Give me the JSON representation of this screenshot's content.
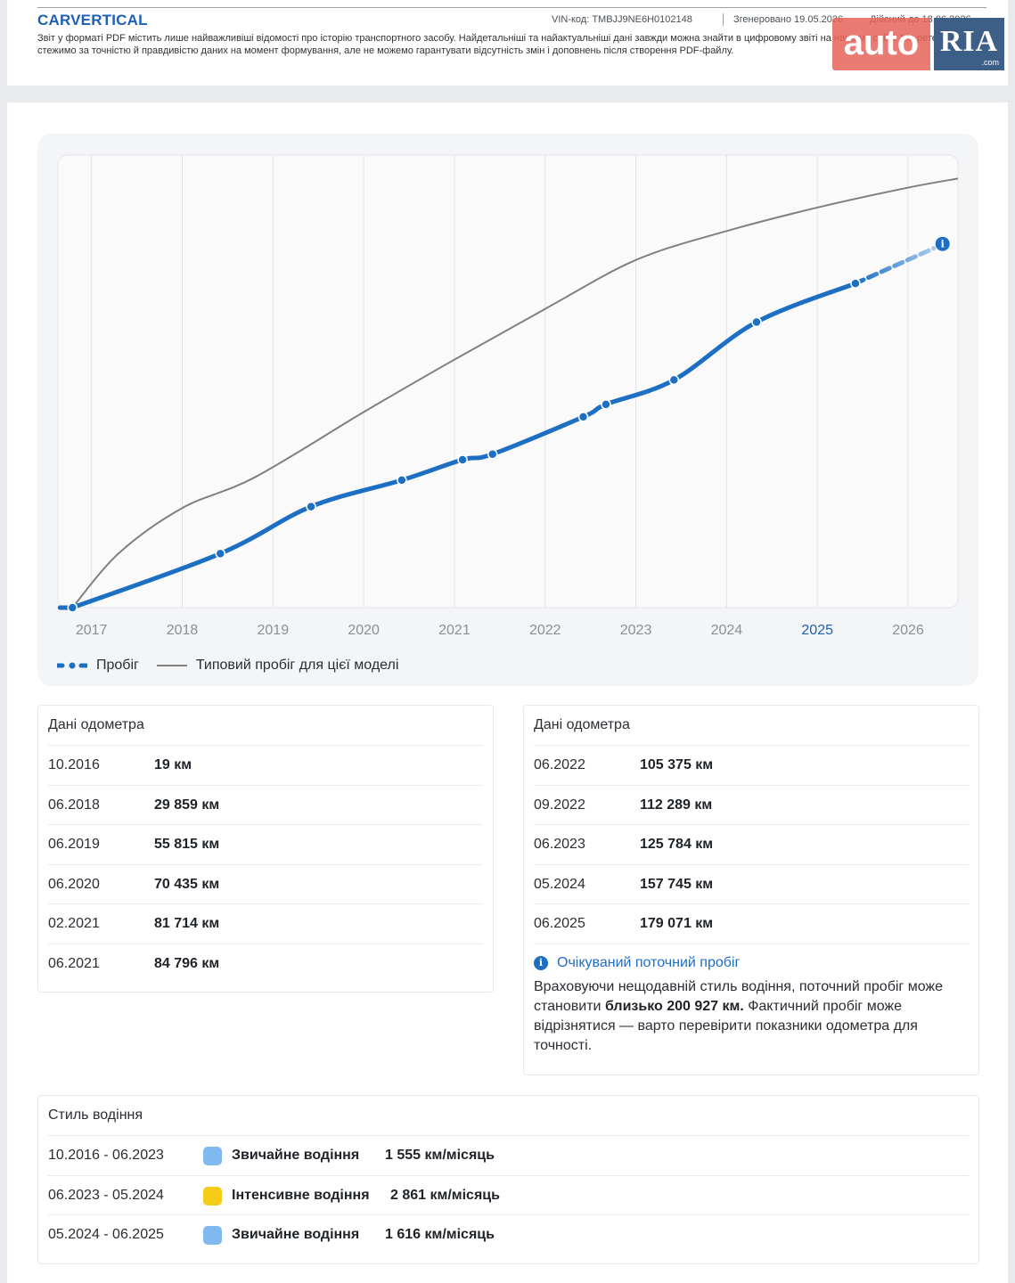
{
  "header": {
    "logo": "CARVERTICAL",
    "vin": "VIN-код:  TMBJJ9NE6H0102148",
    "generated": "Згенеровано  19.05.2026",
    "valid_until": "Дійсний до  18.06.2026",
    "disclaimer": "Звіт у форматі PDF містить лише найважливіші відомості про історію транспортного засобу. Найдетальніші та найактуальніші дані завжди можна знайти в цифровому звіті на нашому сайті. Ми ретельно стежимо за точністю й правдивістю даних на момент формування, але не можемо гарантувати відсутність змін і доповнень після створення PDF-файлу."
  },
  "watermark": {
    "auto": "auto",
    "ria": "RIA",
    "com": ".com"
  },
  "colors": {
    "accent": "#1d6fc4",
    "typical": "#808080",
    "normal": "#7fb9f0",
    "intensive": "#f5cc17"
  },
  "chart_data": {
    "type": "line",
    "x_ticks": [
      "2017",
      "2018",
      "2019",
      "2020",
      "2021",
      "2022",
      "2023",
      "2024",
      "2025",
      "2026"
    ],
    "highlighted_tick": "2025",
    "grid": true,
    "series": [
      {
        "name": "Пробіг",
        "style": "solid-blue-with-points",
        "points": [
          {
            "x": 2016.79,
            "y": 19
          },
          {
            "x": 2018.42,
            "y": 29859
          },
          {
            "x": 2019.42,
            "y": 55815
          },
          {
            "x": 2020.42,
            "y": 70435
          },
          {
            "x": 2021.09,
            "y": 81714
          },
          {
            "x": 2021.42,
            "y": 84796
          },
          {
            "x": 2022.42,
            "y": 105375
          },
          {
            "x": 2022.67,
            "y": 112289
          },
          {
            "x": 2023.42,
            "y": 125784
          },
          {
            "x": 2024.33,
            "y": 157745
          },
          {
            "x": 2025.42,
            "y": 179071
          }
        ]
      },
      {
        "name": "Пробіг (очікуваний)",
        "style": "dashed-blue",
        "points": [
          {
            "x": 2025.42,
            "y": 179071
          },
          {
            "x": 2026.38,
            "y": 200927
          }
        ]
      },
      {
        "name": "Типовий пробіг для цієї моделі",
        "style": "gray",
        "points": [
          {
            "x": 2016.79,
            "y": 0
          },
          {
            "x": 2017.3,
            "y": 30000
          },
          {
            "x": 2018.0,
            "y": 55000
          },
          {
            "x": 2018.8,
            "y": 72000
          },
          {
            "x": 2020.0,
            "y": 108000
          },
          {
            "x": 2021.0,
            "y": 137000
          },
          {
            "x": 2022.0,
            "y": 165000
          },
          {
            "x": 2023.0,
            "y": 192000
          },
          {
            "x": 2024.0,
            "y": 208000
          },
          {
            "x": 2025.0,
            "y": 221000
          },
          {
            "x": 2026.0,
            "y": 232000
          },
          {
            "x": 2026.55,
            "y": 237000
          }
        ]
      }
    ],
    "ylim": [
      0,
      250000
    ],
    "xlim": [
      2016.63,
      2026.55
    ],
    "legend_position": "bottom-left"
  },
  "legend": {
    "mileage": "Пробіг",
    "typical": "Типовий пробіг для цієї моделі"
  },
  "odometer_left": {
    "title": "Дані одометра",
    "rows": [
      {
        "date": "10.2016",
        "value": "19 км"
      },
      {
        "date": "06.2018",
        "value": "29 859 км"
      },
      {
        "date": "06.2019",
        "value": "55 815 км"
      },
      {
        "date": "06.2020",
        "value": "70 435 км"
      },
      {
        "date": "02.2021",
        "value": "81 714 км"
      },
      {
        "date": "06.2021",
        "value": "84 796 км"
      }
    ]
  },
  "odometer_right": {
    "title": "Дані одометра",
    "rows": [
      {
        "date": "06.2022",
        "value": "105 375 км"
      },
      {
        "date": "09.2022",
        "value": "112 289 км"
      },
      {
        "date": "06.2023",
        "value": "125 784 км"
      },
      {
        "date": "05.2024",
        "value": "157 745 км"
      },
      {
        "date": "06.2025",
        "value": "179 071 км"
      }
    ],
    "expected_title": "Очікуваний поточний пробіг",
    "expected_text_1": "Враховуючи нещодавній стиль водіння, поточний пробіг може становити ",
    "expected_bold": "близько 200 927 км.",
    "expected_text_2": " Фактичний пробіг може відрізнятися — варто перевірити показники одометра для точності."
  },
  "driving_style": {
    "title": "Стиль водіння",
    "rows": [
      {
        "period": "10.2016 - 06.2023",
        "style": "Звичайне водіння",
        "rate": "1 555 км/місяць",
        "kind": "normal"
      },
      {
        "period": "06.2023 - 05.2024",
        "style": "Інтенсивне водіння",
        "rate": "2 861 км/місяць",
        "kind": "intensive"
      },
      {
        "period": "05.2024 - 06.2025",
        "style": "Звичайне водіння",
        "rate": "1 616 км/місяць",
        "kind": "normal"
      }
    ]
  }
}
